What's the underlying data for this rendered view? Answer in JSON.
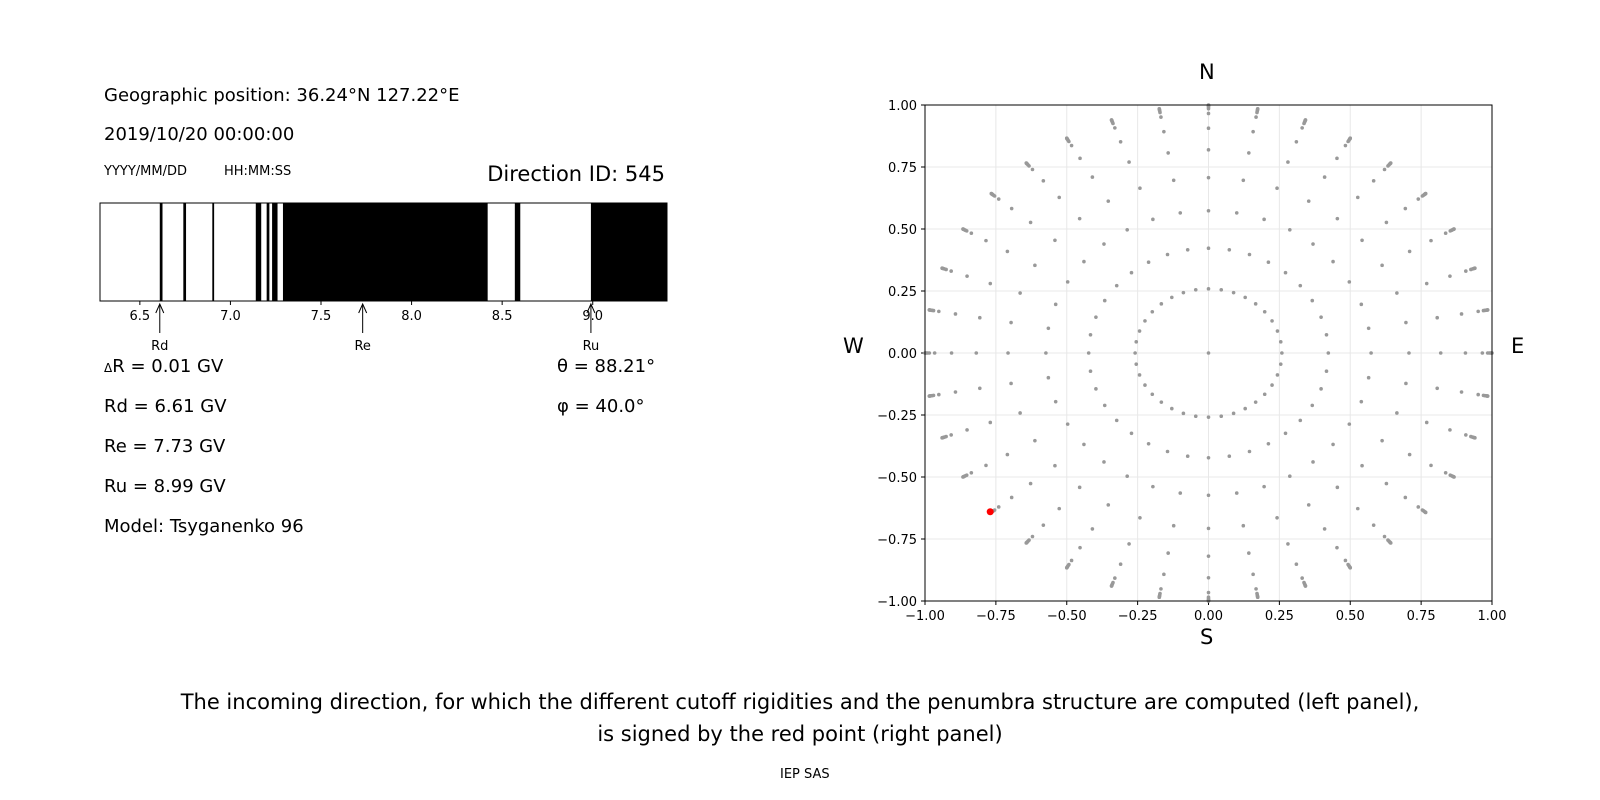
{
  "info": {
    "geo_label": "Geographic position: 36.24°N 127.22°E",
    "datetime": "2019/10/20 00:00:00",
    "date_fmt": "YYYY/MM/DD",
    "time_fmt": "HH:MM:SS",
    "direction": "Direction ID: 545"
  },
  "params": {
    "delta_symbol": "Δ",
    "dr": "R = 0.01 GV",
    "rd": "Rd = 6.61 GV",
    "re": "Re = 7.73 GV",
    "ru": "Ru = 8.99 GV",
    "model": "Model: Tsyganenko 96",
    "theta_symbol": "θ",
    "theta": "= 88.21°",
    "phi_symbol": "φ",
    "phi": "= 40.0°"
  },
  "compass": {
    "n": "N",
    "s": "S",
    "e": "E",
    "w": "W"
  },
  "caption": {
    "line1": "The incoming direction, for which the different cutoff rigidities and the penumbra structure are computed (left panel),",
    "line2": "is signed by the red point (right panel)"
  },
  "footer": "IEP SAS",
  "chart_data": [
    {
      "type": "penumbra",
      "xlim": [
        6.28,
        9.41
      ],
      "ticks": [
        6.5,
        7.0,
        7.5,
        8.0,
        8.5,
        9.0
      ],
      "tick_labels": [
        "6.5",
        "7.0",
        "7.5",
        "8.0",
        "8.5",
        "9.0"
      ],
      "forbidden_intervals": [
        [
          6.61,
          6.625
        ],
        [
          6.74,
          6.755
        ],
        [
          6.9,
          6.91
        ],
        [
          7.14,
          7.17
        ],
        [
          7.2,
          7.215
        ],
        [
          7.23,
          7.26
        ],
        [
          7.29,
          8.42
        ],
        [
          8.57,
          8.6
        ],
        [
          8.99,
          9.41
        ]
      ],
      "markers": [
        {
          "label": "Rd",
          "value": 6.61
        },
        {
          "label": "Re",
          "value": 7.73
        },
        {
          "label": "Ru",
          "value": 8.99
        }
      ]
    },
    {
      "type": "scatter",
      "xlim": [
        -1.0,
        1.0
      ],
      "ylim": [
        -1.0,
        1.0
      ],
      "grid": true,
      "ticks": [
        -1.0,
        -0.75,
        -0.5,
        -0.25,
        0.0,
        0.25,
        0.5,
        0.75,
        1.0
      ],
      "tick_labels": [
        "−1.00",
        "−0.75",
        "−0.50",
        "−0.25",
        "0.00",
        "0.25",
        "0.50",
        "0.75",
        "1.00"
      ],
      "point_color": "#999999",
      "highlight_color": "#ff0000",
      "zenith_rings": [
        15,
        25,
        35,
        45,
        55,
        65,
        75,
        80,
        82,
        84,
        86,
        88,
        90
      ],
      "azimuth_step_deg": 10,
      "highlight": {
        "theta": 88.21,
        "phi": 40.0,
        "x": -0.77,
        "y": -0.64
      }
    }
  ]
}
